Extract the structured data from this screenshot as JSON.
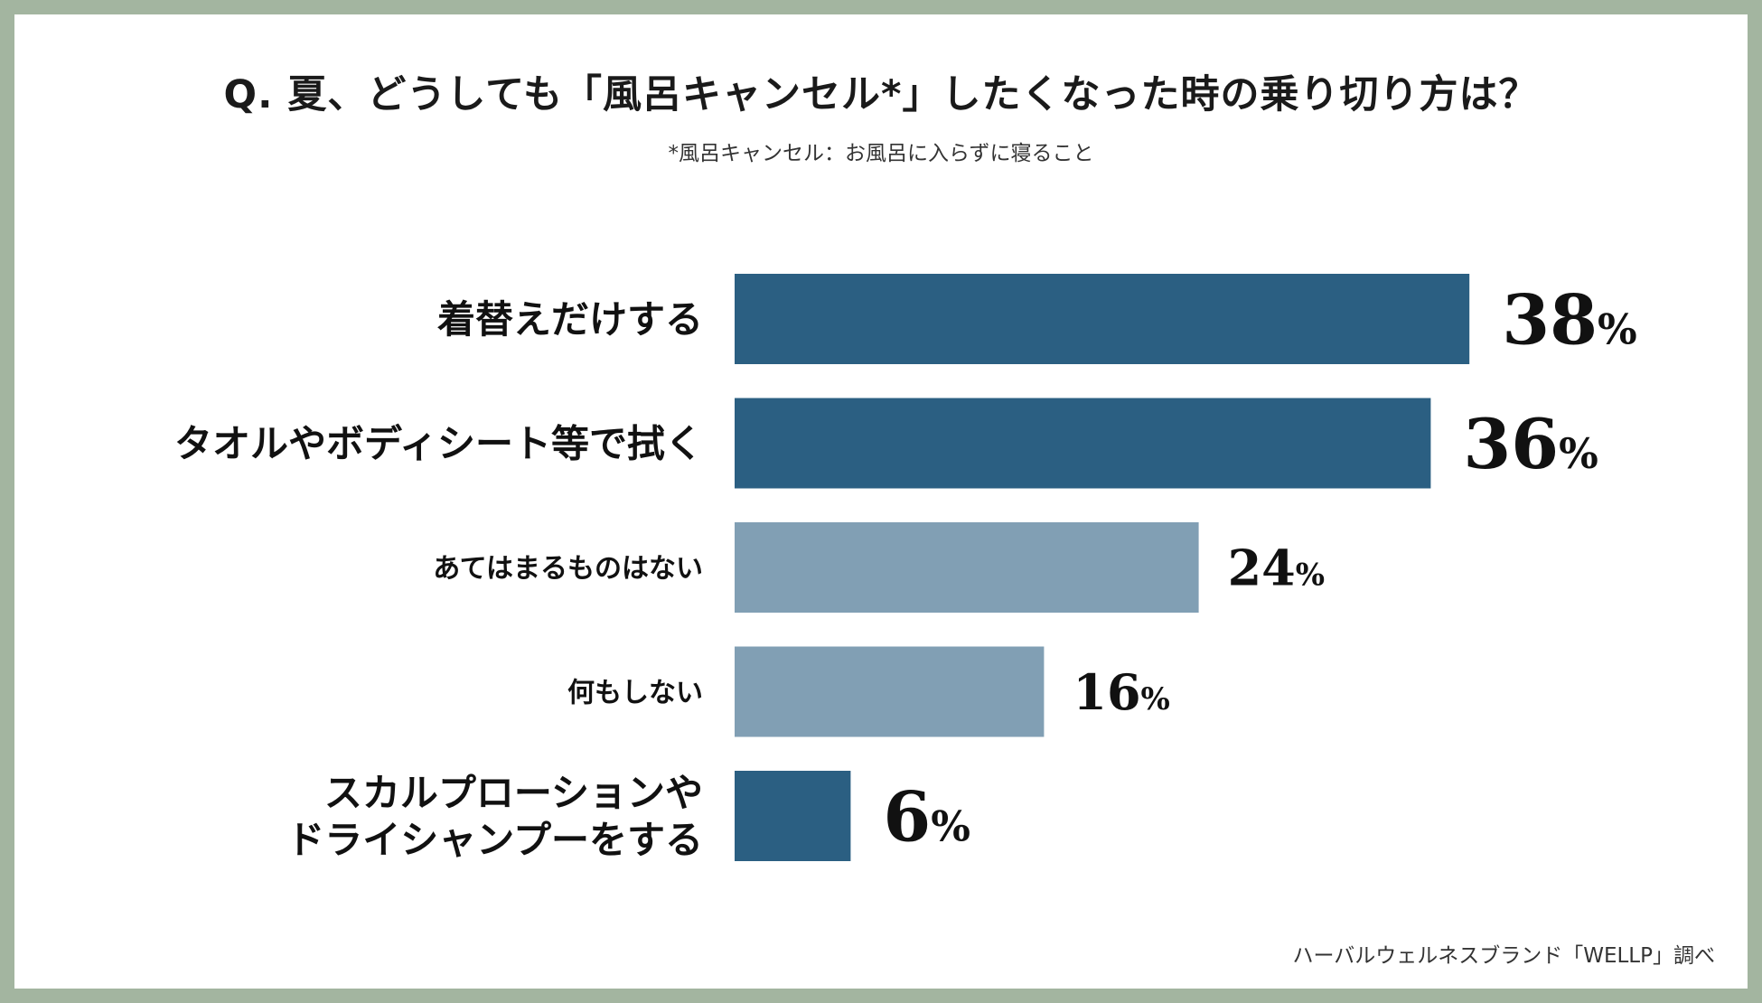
{
  "title": "Q. 夏、どうしても「風呂キャンセル*」したくなった時の乗り切り方は？",
  "subtitle": "*風呂キャンセル：お風呂に入らずに寝ること",
  "source": "ハーバルウェルネスブランド「WELLP」調べ",
  "colors": {
    "dark_bar": "#2b5f82",
    "light_bar": "#819fb4",
    "frame": "#a3b5a0"
  },
  "chart_data": {
    "type": "bar",
    "orientation": "horizontal",
    "unit": "%",
    "categories": [
      [
        "着替えだけする"
      ],
      [
        "タオルやボディシート等で拭く"
      ],
      [
        "あてはまるものはない"
      ],
      [
        "何もしない"
      ],
      [
        "スカルプローションや",
        "ドライシャンプーをする"
      ]
    ],
    "values": [
      38,
      36,
      24,
      16,
      6
    ],
    "highlight": [
      true,
      true,
      false,
      false,
      true
    ]
  }
}
